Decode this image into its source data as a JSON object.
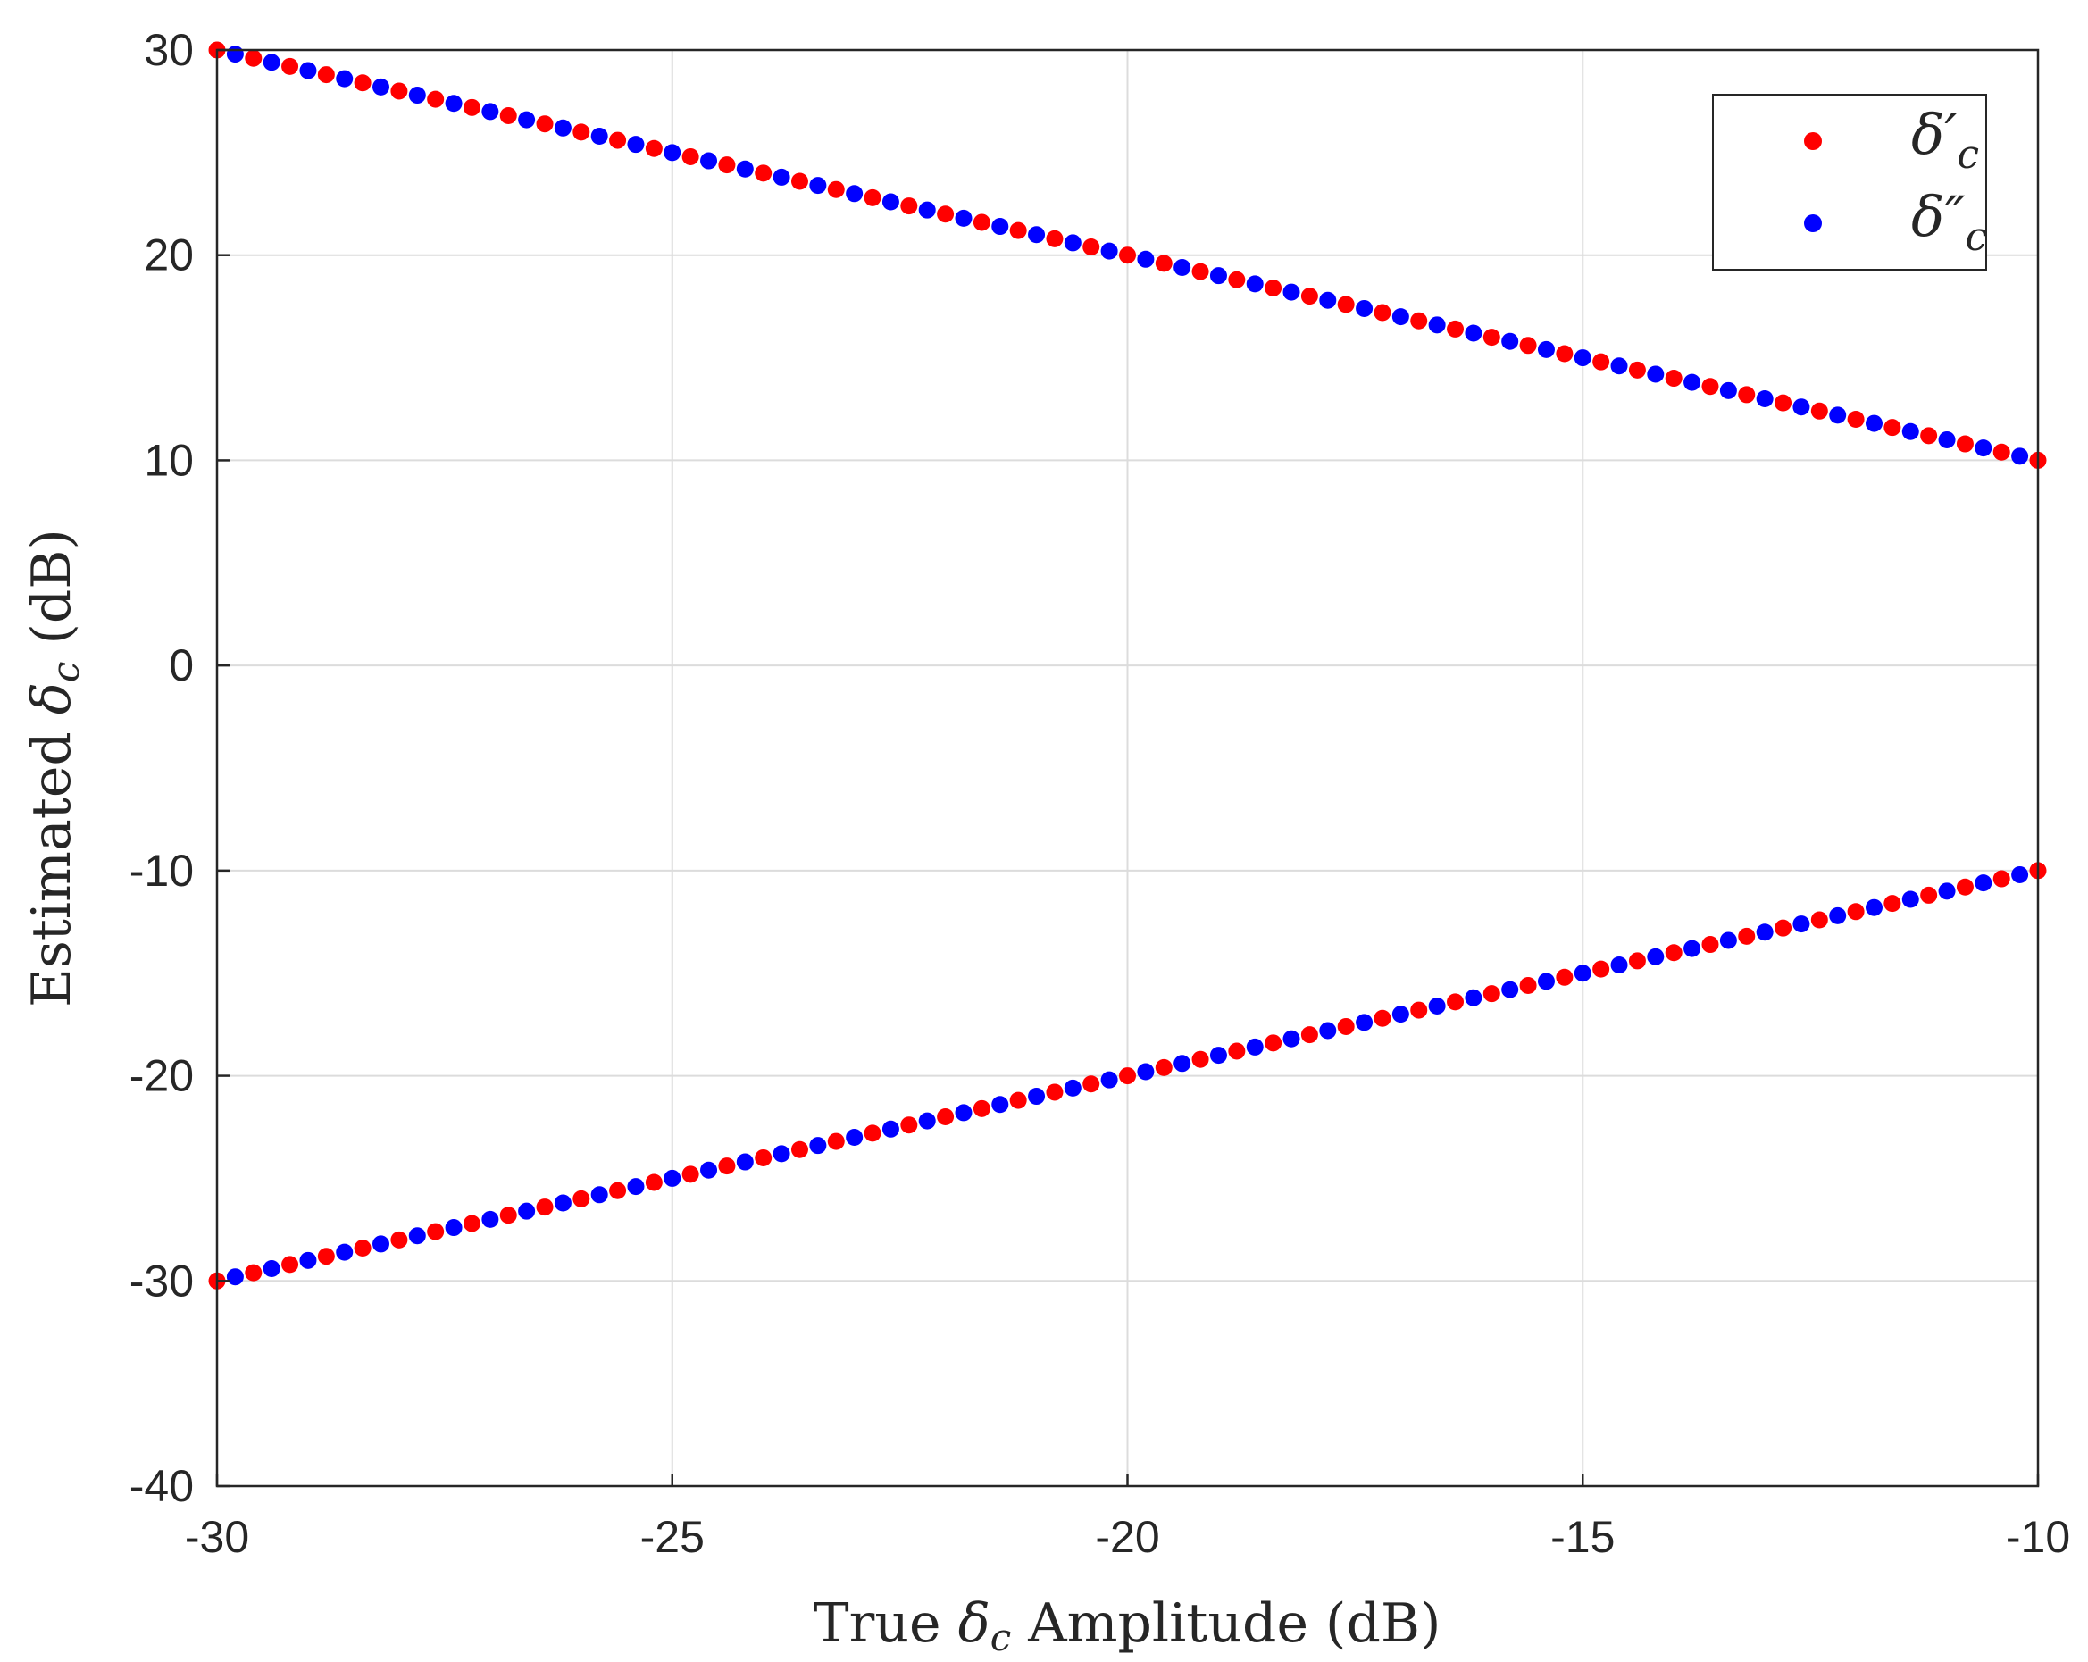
{
  "chart_data": {
    "type": "scatter",
    "xlabel": "True δc Amplitude (dB)",
    "xlabel_parts": {
      "pre": "True ",
      "sym": "δ",
      "sub": "c",
      "post": " Amplitude (dB)"
    },
    "ylabel": "Estimated δc (dB)",
    "ylabel_parts": {
      "pre": "Estimated ",
      "sym": "δ",
      "sub": "c",
      "post": " (dB)"
    },
    "xlim": [
      -30,
      -10
    ],
    "ylim": [
      -40,
      30
    ],
    "xticks": [
      -30,
      -25,
      -20,
      -15,
      -10
    ],
    "yticks": [
      -40,
      -30,
      -20,
      -10,
      0,
      10,
      20,
      30
    ],
    "xtick_labels": [
      "-30",
      "-25",
      "-20",
      "-15",
      "-10"
    ],
    "ytick_labels": [
      "-40",
      "-30",
      "-20",
      "-10",
      "0",
      "10",
      "20",
      "30"
    ],
    "grid": true,
    "legend_position": "top-right",
    "series": [
      {
        "name": "δ′c",
        "legend_symbol": "δ′",
        "legend_sub": "c",
        "color": "#ff0000",
        "description_of_pattern": "estimates of magnitude +/- true value",
        "x": [
          -30.0,
          -29.6,
          -29.2,
          -28.8,
          -28.4,
          -28.0,
          -27.6,
          -27.2,
          -26.8,
          -26.4,
          -26.0,
          -25.6,
          -25.2,
          -24.8,
          -24.4,
          -24.0,
          -23.6,
          -23.2,
          -22.8,
          -22.4,
          -22.0,
          -21.6,
          -21.2,
          -20.8,
          -20.4,
          -20.0,
          -19.6,
          -19.2,
          -18.8,
          -18.4,
          -18.0,
          -17.6,
          -17.2,
          -16.8,
          -16.4,
          -16.0,
          -15.6,
          -15.2,
          -14.8,
          -14.4,
          -14.0,
          -13.6,
          -13.2,
          -12.8,
          -12.4,
          -12.0,
          -11.6,
          -11.2,
          -10.8,
          -10.4,
          -10.0
        ],
        "y_upper": [
          30.0,
          29.6,
          29.2,
          28.8,
          28.4,
          28.0,
          27.6,
          27.2,
          26.8,
          26.4,
          26.0,
          25.6,
          25.2,
          24.8,
          24.4,
          24.0,
          23.6,
          23.2,
          22.8,
          22.4,
          22.0,
          21.6,
          21.2,
          20.8,
          20.4,
          20.0,
          19.6,
          19.2,
          18.8,
          18.4,
          18.0,
          17.6,
          17.2,
          16.8,
          16.4,
          16.0,
          15.6,
          15.2,
          14.8,
          14.4,
          14.0,
          13.6,
          13.2,
          12.8,
          12.4,
          12.0,
          11.6,
          11.2,
          10.8,
          10.4,
          10.0
        ],
        "y_lower": [
          -30.0,
          -29.6,
          -29.2,
          -28.8,
          -28.4,
          -28.0,
          -27.6,
          -27.2,
          -26.8,
          -26.4,
          -26.0,
          -25.6,
          -25.2,
          -24.8,
          -24.4,
          -24.0,
          -23.6,
          -23.2,
          -22.8,
          -22.4,
          -22.0,
          -21.6,
          -21.2,
          -20.8,
          -20.4,
          -20.0,
          -19.6,
          -19.2,
          -18.8,
          -18.4,
          -18.0,
          -17.6,
          -17.2,
          -16.8,
          -16.4,
          -16.0,
          -15.6,
          -15.2,
          -14.8,
          -14.4,
          -14.0,
          -13.6,
          -13.2,
          -12.8,
          -12.4,
          -12.0,
          -11.6,
          -11.2,
          -10.8,
          -10.4,
          -10.0
        ]
      },
      {
        "name": "δ″c",
        "legend_symbol": "δ″",
        "legend_sub": "c",
        "color": "#0000ff",
        "x": [
          -29.8,
          -29.4,
          -29.0,
          -28.6,
          -28.2,
          -27.8,
          -27.4,
          -27.0,
          -26.6,
          -26.2,
          -25.8,
          -25.4,
          -25.0,
          -24.6,
          -24.2,
          -23.8,
          -23.4,
          -23.0,
          -22.6,
          -22.2,
          -21.8,
          -21.4,
          -21.0,
          -20.6,
          -20.2,
          -19.8,
          -19.4,
          -19.0,
          -18.6,
          -18.2,
          -17.8,
          -17.4,
          -17.0,
          -16.6,
          -16.2,
          -15.8,
          -15.4,
          -15.0,
          -14.6,
          -14.2,
          -13.8,
          -13.4,
          -13.0,
          -12.6,
          -12.2,
          -11.8,
          -11.4,
          -11.0,
          -10.6,
          -10.2
        ],
        "y_upper": [
          29.8,
          29.4,
          29.0,
          28.6,
          28.2,
          27.8,
          27.4,
          27.0,
          26.6,
          26.2,
          25.8,
          25.4,
          25.0,
          24.6,
          24.2,
          23.8,
          23.4,
          23.0,
          22.6,
          22.2,
          21.8,
          21.4,
          21.0,
          20.6,
          20.2,
          19.8,
          19.4,
          19.0,
          18.6,
          18.2,
          17.8,
          17.4,
          17.0,
          16.6,
          16.2,
          15.8,
          15.4,
          15.0,
          14.6,
          14.2,
          13.8,
          13.4,
          13.0,
          12.6,
          12.2,
          11.8,
          11.4,
          11.0,
          10.6,
          10.2
        ],
        "y_lower": [
          -29.8,
          -29.4,
          -29.0,
          -28.6,
          -28.2,
          -27.8,
          -27.4,
          -27.0,
          -26.6,
          -26.2,
          -25.8,
          -25.4,
          -25.0,
          -24.6,
          -24.2,
          -23.8,
          -23.4,
          -23.0,
          -22.6,
          -22.2,
          -21.8,
          -21.4,
          -21.0,
          -20.6,
          -20.2,
          -19.8,
          -19.4,
          -19.0,
          -18.6,
          -18.2,
          -17.8,
          -17.4,
          -17.0,
          -16.6,
          -16.2,
          -15.8,
          -15.4,
          -15.0,
          -14.6,
          -14.2,
          -13.8,
          -13.4,
          -13.0,
          -12.6,
          -12.2,
          -11.8,
          -11.4,
          -11.0,
          -10.6,
          -10.2
        ]
      }
    ]
  }
}
